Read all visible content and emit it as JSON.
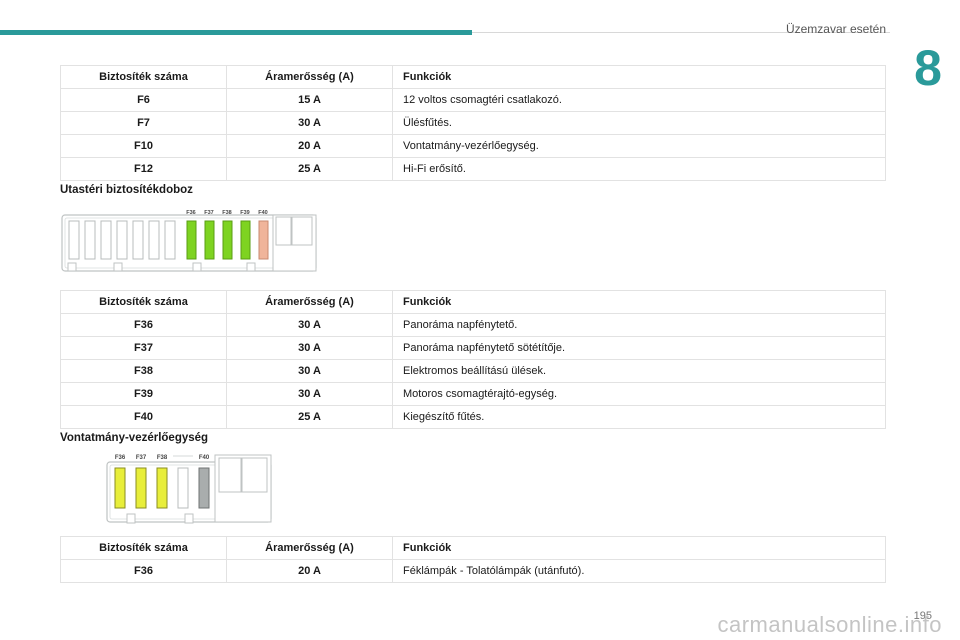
{
  "header": {
    "section_title": "Üzemzavar esetén",
    "chapter_number": "8"
  },
  "colors": {
    "accent": "#2a9a9a",
    "fuse_green": "#7ed321",
    "fuse_salmon": "#f0b49a",
    "fuse_yellow": "#e8ee3a",
    "fuse_grey": "#a9adad"
  },
  "table_headers": {
    "number": "Biztosíték száma",
    "amperage": "Áramerősség (A)",
    "function": "Funkciók"
  },
  "table1": [
    {
      "number": "F6",
      "amperage": "15 A",
      "function": "12 voltos csomagtéri csatlakozó."
    },
    {
      "number": "F7",
      "amperage": "30 A",
      "function": "Ülésfűtés."
    },
    {
      "number": "F10",
      "amperage": "20 A",
      "function": "Vontatmány-vezérlőegység."
    },
    {
      "number": "F12",
      "amperage": "25 A",
      "function": "Hi-Fi erősítő."
    }
  ],
  "subtitle1": "Utastéri biztosítékdoboz",
  "diagram1": {
    "labels": [
      "F36",
      "F37",
      "F38",
      "F39",
      "F40"
    ]
  },
  "table2": [
    {
      "number": "F36",
      "amperage": "30 A",
      "function": "Panoráma napfénytető."
    },
    {
      "number": "F37",
      "amperage": "30 A",
      "function": "Panoráma napfénytető sötétítője."
    },
    {
      "number": "F38",
      "amperage": "30 A",
      "function": "Elektromos beállítású ülések."
    },
    {
      "number": "F39",
      "amperage": "30 A",
      "function": "Motoros csomagtérajtó-egység."
    },
    {
      "number": "F40",
      "amperage": "25 A",
      "function": "Kiegészítő fűtés."
    }
  ],
  "subtitle2": "Vontatmány-vezérlőegység",
  "diagram2": {
    "labels": [
      "F36",
      "F37",
      "F38",
      "F40"
    ]
  },
  "table3": [
    {
      "number": "F36",
      "amperage": "20 A",
      "function": "Féklámpák - Tolatólámpák (utánfutó)."
    }
  ],
  "footer": {
    "page_number": "195",
    "watermark": "carmanualsonline.info"
  }
}
